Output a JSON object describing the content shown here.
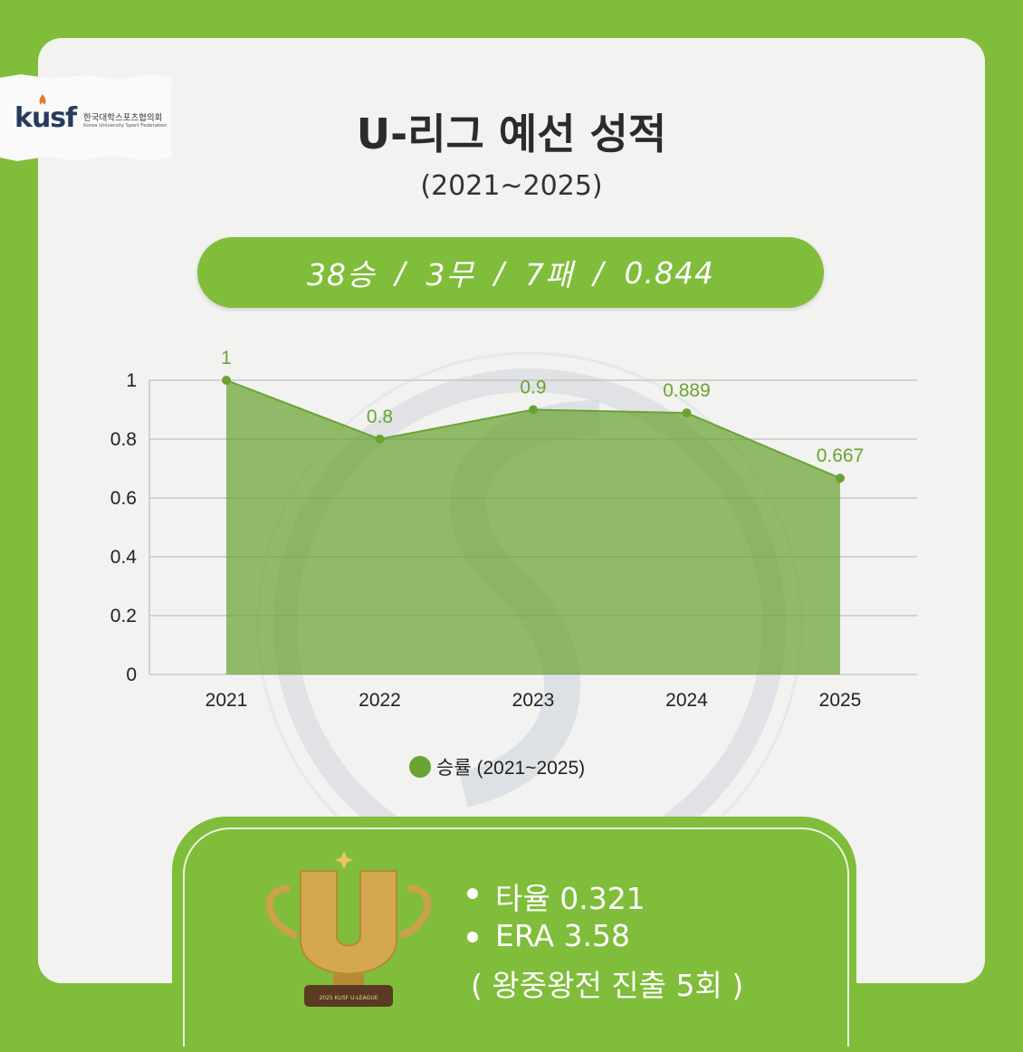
{
  "logo": {
    "mark": "kusf",
    "korean_name": "한국대학스포츠협의회",
    "english_name": "Korea University Sport Federation"
  },
  "title": "U-리그 예선 성적",
  "subtitle": "(2021~2025)",
  "record": {
    "wins": "38승",
    "draws": "3무",
    "losses": "7패",
    "pct": "0.844",
    "separator": "/"
  },
  "chart_data": {
    "type": "area",
    "categories": [
      "2021",
      "2022",
      "2023",
      "2024",
      "2025"
    ],
    "series": [
      {
        "name": "승률 (2021~2025)",
        "values": [
          1,
          0.8,
          0.9,
          0.889,
          0.667
        ],
        "labels": [
          "1",
          "0.8",
          "0.9",
          "0.889",
          "0.667"
        ]
      }
    ],
    "ylim": [
      0,
      1
    ],
    "yticks": [
      0,
      0.2,
      0.4,
      0.6,
      0.8,
      1
    ],
    "ytick_labels": [
      "0",
      "0.2",
      "0.4",
      "0.6",
      "0.8",
      "1"
    ],
    "grid": true,
    "legend_position": "bottom",
    "color": "#6aa332"
  },
  "stats": {
    "batting": "타율 0.321",
    "era": "ERA 3.58",
    "note": "( 왕중왕전 진출 5회 )"
  },
  "trophy_plate": "2025 KUSF U-LEAGUE",
  "colors": {
    "accent": "#7fbd3a",
    "series": "#6aa332",
    "card": "#f2f2f0"
  }
}
